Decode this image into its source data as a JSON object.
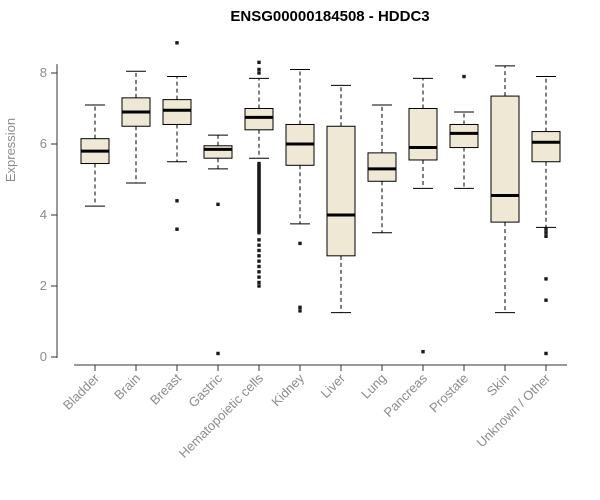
{
  "chart_data": {
    "type": "boxplot",
    "title": "ENSG00000184508 - HDDC3",
    "xlabel": "",
    "ylabel": "Expression",
    "ylim": [
      0,
      9.2
    ],
    "yticks": [
      0,
      2,
      4,
      6,
      8
    ],
    "grid": false,
    "legend": false,
    "categories": [
      "Bladder",
      "Brain",
      "Breast",
      "Gastric",
      "Hematopoietic cells",
      "Kidney",
      "Liver",
      "Lung",
      "Pancreas",
      "Prostate",
      "Skin",
      "Unknown / Other"
    ],
    "series": [
      {
        "category": "Bladder",
        "whislo": 4.25,
        "q1": 5.45,
        "med": 5.8,
        "q3": 6.15,
        "whishi": 7.1,
        "outliers": []
      },
      {
        "category": "Brain",
        "whislo": 4.9,
        "q1": 6.5,
        "med": 6.9,
        "q3": 7.3,
        "whishi": 8.05,
        "outliers": []
      },
      {
        "category": "Breast",
        "whislo": 5.5,
        "q1": 6.55,
        "med": 6.95,
        "q3": 7.25,
        "whishi": 7.9,
        "outliers": [
          8.85,
          4.4,
          3.6
        ]
      },
      {
        "category": "Gastric",
        "whislo": 5.3,
        "q1": 5.6,
        "med": 5.85,
        "q3": 5.95,
        "whishi": 6.25,
        "outliers": [
          4.3,
          0.1
        ]
      },
      {
        "category": "Hematopoietic cells",
        "whislo": 5.6,
        "q1": 6.4,
        "med": 6.75,
        "q3": 7.0,
        "whishi": 7.85,
        "outliers": [
          8.3,
          8.1,
          8.0,
          5.45,
          5.4,
          5.35,
          5.3,
          5.25,
          5.2,
          5.15,
          5.1,
          5.05,
          5.0,
          4.95,
          4.9,
          4.85,
          4.8,
          4.75,
          4.7,
          4.65,
          4.6,
          4.55,
          4.5,
          4.45,
          4.4,
          4.35,
          4.3,
          4.25,
          4.2,
          4.15,
          4.1,
          4.05,
          4.0,
          3.95,
          3.9,
          3.85,
          3.8,
          3.75,
          3.7,
          3.65,
          3.6,
          3.55,
          3.5,
          3.3,
          3.15,
          3.0,
          2.85,
          2.7,
          2.55,
          2.4,
          2.25,
          2.1,
          2.0
        ]
      },
      {
        "category": "Kidney",
        "whislo": 3.75,
        "q1": 5.4,
        "med": 6.0,
        "q3": 6.55,
        "whishi": 8.1,
        "outliers": [
          3.2,
          1.4,
          1.3
        ]
      },
      {
        "category": "Liver",
        "whislo": 1.25,
        "q1": 2.85,
        "med": 4.0,
        "q3": 6.5,
        "whishi": 7.65,
        "outliers": []
      },
      {
        "category": "Lung",
        "whislo": 3.5,
        "q1": 4.95,
        "med": 5.3,
        "q3": 5.75,
        "whishi": 7.1,
        "outliers": []
      },
      {
        "category": "Pancreas",
        "whislo": 4.75,
        "q1": 5.55,
        "med": 5.9,
        "q3": 7.0,
        "whishi": 7.85,
        "outliers": [
          0.15
        ]
      },
      {
        "category": "Prostate",
        "whislo": 4.75,
        "q1": 5.9,
        "med": 6.3,
        "q3": 6.55,
        "whishi": 6.9,
        "outliers": [
          7.9
        ]
      },
      {
        "category": "Skin",
        "whislo": 1.25,
        "q1": 3.8,
        "med": 4.55,
        "q3": 7.35,
        "whishi": 8.2,
        "outliers": []
      },
      {
        "category": "Unknown / Other",
        "whislo": 3.65,
        "q1": 5.5,
        "med": 6.05,
        "q3": 6.35,
        "whishi": 7.9,
        "outliers": [
          3.6,
          3.5,
          3.4,
          2.2,
          1.6,
          0.1
        ]
      }
    ],
    "colors": {
      "background": "#ffffff",
      "box_fill": "#eee8d4",
      "box_border": "#000000",
      "median": "#000000",
      "whisker": "#000000",
      "outlier": "#1a1a1a",
      "axis": "#333333",
      "tick_label": "#8c8c8c",
      "category_label": "#8c8c8c",
      "title": "#000000",
      "ylabel": "#8c8c8c"
    }
  }
}
